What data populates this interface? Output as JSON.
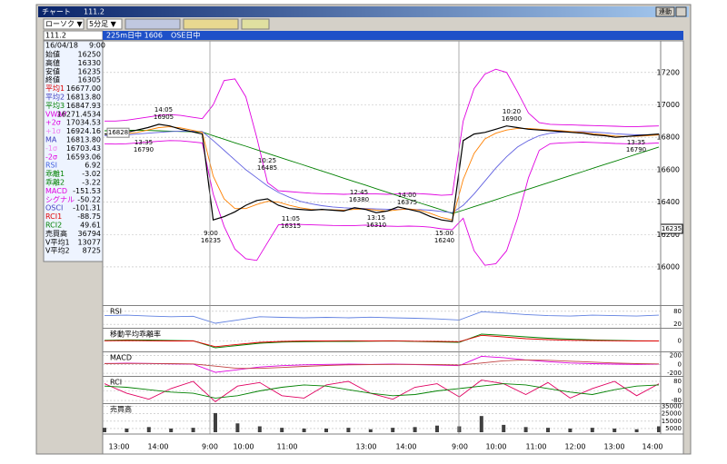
{
  "window": {
    "title": "チャート",
    "code": "111.2",
    "button": "連動"
  },
  "toolbar": {
    "chart_type": "ローソク ▼",
    "interval": "5分足 ▼"
  },
  "header": {
    "code": "111.2",
    "market": "225m日中 1606",
    "session": "OSE日中"
  },
  "info_panel": {
    "date": "16/04/18",
    "time": "9:00",
    "rows": [
      {
        "label": "始値",
        "value": "16250",
        "color": "#000000"
      },
      {
        "label": "高値",
        "value": "16330",
        "color": "#000000"
      },
      {
        "label": "安値",
        "value": "16235",
        "color": "#000000"
      },
      {
        "label": "終値",
        "value": "16305",
        "color": "#000000"
      },
      {
        "label": "平均1",
        "value": "16677.00",
        "color": "#e00000"
      },
      {
        "label": "平均2",
        "value": "16813.80",
        "color": "#4040c0"
      },
      {
        "label": "平均3",
        "value": "16847.93",
        "color": "#008000"
      },
      {
        "label": "VWAP",
        "value": "16271.4534",
        "color": "#e000e0"
      },
      {
        "label": "+2σ",
        "value": "17034.53",
        "color": "#e000e0"
      },
      {
        "label": "+1σ",
        "value": "16924.16",
        "color": "#f080f0"
      },
      {
        "label": "MA",
        "value": "16813.80",
        "color": "#4040c0"
      },
      {
        "label": "-1σ",
        "value": "16703.43",
        "color": "#f080f0"
      },
      {
        "label": "-2σ",
        "value": "16593.06",
        "color": "#e000e0"
      },
      {
        "label": "RSI",
        "value": "6.92",
        "color": "#4060e0"
      },
      {
        "label": "乖離1",
        "value": "-3.02",
        "color": "#008000"
      },
      {
        "label": "乖離2",
        "value": "-3.22",
        "color": "#008000"
      },
      {
        "label": "MACD",
        "value": "-151.53",
        "color": "#e000e0"
      },
      {
        "label": "シグナル",
        "value": "-50.22",
        "color": "#e000e0"
      },
      {
        "label": "OSCI",
        "value": "-101.31",
        "color": "#4040c0"
      },
      {
        "label": "RCI1",
        "value": "-88.75",
        "color": "#e00000"
      },
      {
        "label": "RCI2",
        "value": "49.61",
        "color": "#008000"
      },
      {
        "label": "売買高",
        "value": "36794",
        "color": "#000000"
      },
      {
        "label": "V平均1",
        "value": "13077",
        "color": "#000000"
      },
      {
        "label": "V平均2",
        "value": "8725",
        "color": "#000000"
      }
    ]
  },
  "chart_data": [
    {
      "type": "line",
      "ylim": [
        15770,
        17395
      ],
      "yticks": [
        16000,
        16200,
        16400,
        16600,
        16800,
        17000,
        17200
      ],
      "grid": true,
      "last_price": 16235,
      "open_marker": 16828,
      "series": [
        {
          "color": "#e000e0",
          "values": [
            16900,
            16900,
            16905,
            16915,
            16925,
            16935,
            16940,
            16935,
            16925,
            16915,
            17000,
            17150,
            17160,
            17050,
            16800,
            16520,
            16470,
            16465,
            16460,
            16455,
            16452,
            16450,
            16448,
            16450,
            16452,
            16450,
            16448,
            16450,
            16455,
            16452,
            16448,
            16442,
            16445,
            16900,
            17100,
            17190,
            17220,
            17200,
            17080,
            16950,
            16890,
            16880,
            16878,
            16876,
            16874,
            16872,
            16870,
            16868,
            16866,
            16866,
            16868,
            16870
          ]
        },
        {
          "color": "#e000e0",
          "values": [
            16760,
            16758,
            16760,
            16765,
            16770,
            16775,
            16780,
            16778,
            16772,
            16765,
            16450,
            16250,
            16110,
            16050,
            16040,
            16150,
            16260,
            16262,
            16262,
            16260,
            16258,
            16256,
            16255,
            16255,
            16258,
            16255,
            16252,
            16250,
            16252,
            16250,
            16245,
            16235,
            16230,
            16300,
            16100,
            16010,
            16020,
            16100,
            16300,
            16550,
            16720,
            16760,
            16765,
            16768,
            16770,
            16768,
            16765,
            16762,
            16760,
            16760,
            16762,
            16765
          ]
        },
        {
          "color": "#008000",
          "values": [
            16840,
            16842,
            16843,
            16843,
            16842,
            16840,
            16838,
            16836,
            16834,
            16832,
            16810,
            16788,
            16766,
            16745,
            16723,
            16701,
            16679,
            16657,
            16636,
            16614,
            16592,
            16570,
            16548,
            16526,
            16505,
            16483,
            16461,
            16439,
            16417,
            16395,
            16374,
            16352,
            16330,
            16350,
            16372,
            16393,
            16415,
            16437,
            16458,
            16480,
            16502,
            16523,
            16545,
            16567,
            16588,
            16610,
            16632,
            16653,
            16675,
            16697,
            16718,
            16740
          ]
        },
        {
          "color": "#6060e0",
          "values": [
            16810,
            16812,
            16815,
            16820,
            16825,
            16830,
            16835,
            16838,
            16838,
            16835,
            16780,
            16720,
            16660,
            16600,
            16550,
            16500,
            16460,
            16430,
            16405,
            16390,
            16378,
            16370,
            16365,
            16362,
            16360,
            16358,
            16356,
            16355,
            16356,
            16354,
            16350,
            16342,
            16335,
            16380,
            16450,
            16530,
            16610,
            16680,
            16740,
            16780,
            16810,
            16825,
            16832,
            16835,
            16835,
            16832,
            16828,
            16822,
            16818,
            16815,
            16815,
            16816
          ]
        },
        {
          "color": "#ff8000",
          "values": [
            16820,
            16818,
            16822,
            16830,
            16845,
            16860,
            16865,
            16858,
            16845,
            16830,
            16560,
            16420,
            16360,
            16360,
            16385,
            16405,
            16400,
            16380,
            16365,
            16355,
            16352,
            16352,
            16350,
            16355,
            16358,
            16350,
            16345,
            16352,
            16358,
            16350,
            16330,
            16305,
            16290,
            16540,
            16700,
            16790,
            16825,
            16845,
            16855,
            16855,
            16850,
            16845,
            16840,
            16835,
            16830,
            16822,
            16815,
            16808,
            16805,
            16806,
            16810,
            16815
          ]
        },
        {
          "color": "#000000",
          "values": [
            16820,
            16815,
            16830,
            16845,
            16860,
            16880,
            16870,
            16850,
            16835,
            16820,
            16290,
            16310,
            16340,
            16380,
            16410,
            16420,
            16380,
            16360,
            16355,
            16350,
            16355,
            16350,
            16345,
            16365,
            16355,
            16335,
            16345,
            16370,
            16355,
            16340,
            16310,
            16290,
            16280,
            16780,
            16820,
            16830,
            16850,
            16870,
            16860,
            16850,
            16845,
            16840,
            16835,
            16830,
            16825,
            16815,
            16810,
            16800,
            16805,
            16810,
            16815,
            16820
          ]
        }
      ],
      "annotations": [
        {
          "time": "14:05",
          "value": 16905
        },
        {
          "time": "13:35",
          "value": 16790
        },
        {
          "time": "9:00",
          "value": 16235
        },
        {
          "time": "10:25",
          "value": 16485
        },
        {
          "time": "11:05",
          "value": 16315
        },
        {
          "time": "12:45",
          "value": 16380
        },
        {
          "time": "13:15",
          "value": 16310
        },
        {
          "time": "14:00",
          "value": 16375
        },
        {
          "time": "15:00",
          "value": 16240
        },
        {
          "time": "10:20",
          "value": 16900
        },
        {
          "time": "13:35",
          "value": 16790
        }
      ]
    },
    {
      "type": "line",
      "label": "RSI",
      "ylim": [
        0,
        100
      ],
      "yticks": [
        80,
        20
      ],
      "series": [
        {
          "color": "#6080e0",
          "values": [
            60,
            62,
            58,
            55,
            57,
            25,
            40,
            55,
            52,
            50,
            52,
            50,
            53,
            50,
            48,
            45,
            40,
            78,
            72,
            65,
            60,
            58,
            62,
            60,
            58,
            62
          ]
        }
      ]
    },
    {
      "type": "line",
      "label": "移動平均乖離率",
      "ylim": [
        -5,
        5
      ],
      "yticks": [
        0
      ],
      "series": [
        {
          "color": "#008000",
          "values": [
            0.3,
            0.5,
            0.4,
            0.2,
            0.1,
            -3,
            -2,
            -1,
            -0.5,
            -0.3,
            -0.2,
            -0.2,
            -0.1,
            0,
            -0.2,
            -0.4,
            -0.6,
            3,
            2.5,
            1.8,
            1.2,
            0.8,
            0.5,
            0.3,
            0.1,
            0
          ]
        },
        {
          "color": "#e00000",
          "values": [
            0.1,
            0.2,
            0.1,
            0,
            0,
            -2.5,
            -1.5,
            -0.6,
            -0.2,
            0,
            0,
            0.1,
            0,
            0.1,
            -0.1,
            -0.2,
            -0.3,
            2.5,
            1.8,
            1,
            0.6,
            0.3,
            0.2,
            0.1,
            0,
            0
          ]
        }
      ]
    },
    {
      "type": "line",
      "label": "MACD",
      "ylim": [
        -280,
        250
      ],
      "yticks": [
        200,
        0,
        -200
      ],
      "series": [
        {
          "color": "#e000e0",
          "values": [
            20,
            25,
            20,
            10,
            5,
            -180,
            -120,
            -60,
            -30,
            -10,
            0,
            5,
            0,
            5,
            -5,
            -15,
            -30,
            180,
            150,
            100,
            60,
            30,
            15,
            5,
            0,
            5
          ]
        },
        {
          "color": "#c04040",
          "values": [
            15,
            20,
            20,
            15,
            10,
            -40,
            -90,
            -90,
            -70,
            -45,
            -25,
            -10,
            -5,
            0,
            0,
            -5,
            -15,
            30,
            80,
            100,
            90,
            70,
            50,
            30,
            15,
            10
          ]
        }
      ]
    },
    {
      "type": "line",
      "label": "RCI",
      "ylim": [
        -110,
        110
      ],
      "yticks": [
        80,
        0,
        -80
      ],
      "series": [
        {
          "color": "#e00060",
          "values": [
            60,
            -20,
            -70,
            20,
            80,
            -90,
            40,
            70,
            -40,
            -60,
            50,
            80,
            -20,
            -70,
            30,
            60,
            -50,
            90,
            60,
            -30,
            70,
            -60,
            20,
            80,
            -40,
            60
          ]
        },
        {
          "color": "#008000",
          "values": [
            40,
            30,
            10,
            -10,
            -20,
            -60,
            -40,
            0,
            30,
            50,
            40,
            10,
            -20,
            -40,
            -30,
            0,
            20,
            40,
            60,
            50,
            20,
            -10,
            -30,
            10,
            40,
            50
          ]
        }
      ]
    },
    {
      "type": "bar",
      "label": "売買高",
      "ylim": [
        0,
        37000
      ],
      "yticks": [
        35000,
        25000,
        15000,
        5000
      ],
      "color": "#404040",
      "values": [
        6000,
        5000,
        7000,
        5000,
        6000,
        26000,
        12000,
        8000,
        6000,
        5000,
        5000,
        6000,
        4000,
        6000,
        7000,
        9000,
        8000,
        22000,
        10000,
        7000,
        6000,
        5000,
        6000,
        5000,
        4000,
        8000
      ],
      "x_labels": [
        "13:00",
        "14:00",
        "9:00",
        "10:00",
        "11:00",
        "13:00",
        "14:00",
        "9:00",
        "10:00",
        "11:00",
        "12:00",
        "13:00",
        "14:00"
      ]
    }
  ]
}
